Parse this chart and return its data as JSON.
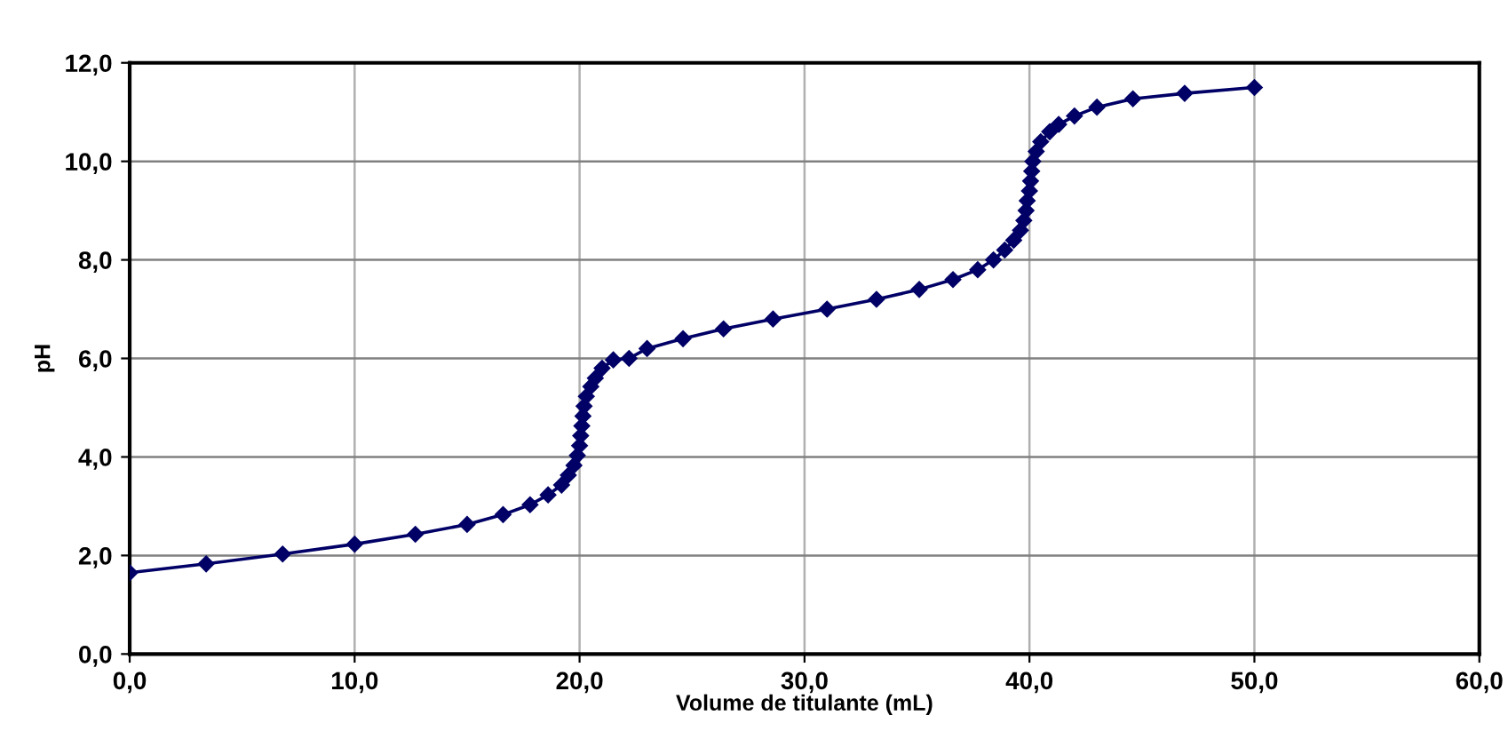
{
  "chart_data": {
    "type": "line",
    "xlabel": "Volume de titulante (mL)",
    "ylabel": "pH",
    "x": [
      0,
      3.4,
      6.8,
      10,
      12.7,
      15,
      16.6,
      17.8,
      18.6,
      19.2,
      19.5,
      19.75,
      19.9,
      20.0,
      20.05,
      20.1,
      20.15,
      20.2,
      20.3,
      20.5,
      20.7,
      21.0,
      21.5,
      22.2,
      23.0,
      24.6,
      26.4,
      28.6,
      31.0,
      33.2,
      35.1,
      36.6,
      37.7,
      38.4,
      38.9,
      39.3,
      39.6,
      39.75,
      39.85,
      39.9,
      40.0,
      40.05,
      40.1,
      40.15,
      40.3,
      40.5,
      40.9,
      41.3,
      42.0,
      43.0,
      44.6,
      46.9,
      50.0
    ],
    "series": [
      {
        "color": "#000066",
        "values": [
          1.65,
          1.83,
          2.03,
          2.23,
          2.43,
          2.63,
          2.83,
          3.03,
          3.23,
          3.43,
          3.63,
          3.83,
          4.03,
          4.23,
          4.43,
          4.63,
          4.83,
          5.03,
          5.23,
          5.43,
          5.6,
          5.8,
          5.97,
          6.0,
          6.2,
          6.4,
          6.6,
          6.8,
          7.0,
          7.2,
          7.4,
          7.6,
          7.8,
          8.0,
          8.2,
          8.4,
          8.6,
          8.8,
          9.0,
          9.2,
          9.4,
          9.6,
          9.8,
          10.0,
          10.2,
          10.4,
          10.6,
          10.75,
          10.92,
          11.1,
          11.27,
          11.38,
          11.5
        ]
      }
    ],
    "xlim": [
      0,
      60
    ],
    "ylim": [
      0,
      12
    ],
    "xticks": [
      {
        "value": 0,
        "label": "0,0"
      },
      {
        "value": 10,
        "label": "10,0"
      },
      {
        "value": 20,
        "label": "20,0"
      },
      {
        "value": 30,
        "label": "30,0"
      },
      {
        "value": 40,
        "label": "40,0"
      },
      {
        "value": 50,
        "label": "50,0"
      },
      {
        "value": 60,
        "label": "60,0"
      }
    ],
    "yticks": [
      {
        "value": 0,
        "label": "0,0"
      },
      {
        "value": 2,
        "label": "2,0"
      },
      {
        "value": 4,
        "label": "4,0"
      },
      {
        "value": 6,
        "label": "6,0"
      },
      {
        "value": 8,
        "label": "8,0"
      },
      {
        "value": 10,
        "label": "10,0"
      },
      {
        "value": 12,
        "label": "12,0"
      }
    ],
    "grid": true,
    "marker": "diamond",
    "line_style": "solid"
  }
}
